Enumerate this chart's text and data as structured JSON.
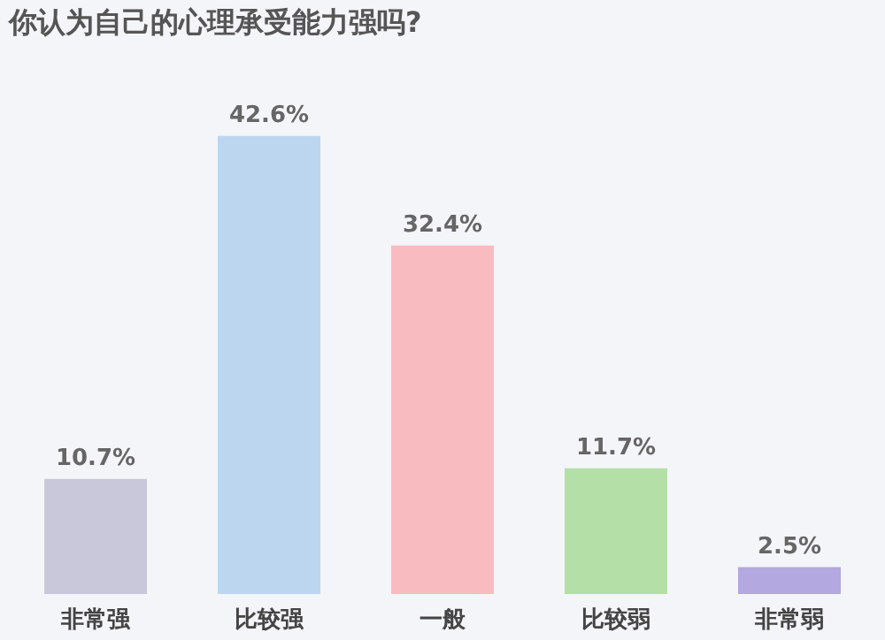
{
  "chart_data": {
    "type": "bar",
    "title": "你认为自己的心理承受能力强吗?",
    "categories": [
      "非常强",
      "比较强",
      "一般",
      "比较弱",
      "非常弱"
    ],
    "values": [
      10.7,
      42.6,
      32.4,
      11.7,
      2.5
    ],
    "colors": [
      "#c9c8da",
      "#bcd6ef",
      "#f8bcc0",
      "#b4e0a8",
      "#b3a8e0"
    ],
    "value_labels": [
      "10.7%",
      "42.6%",
      "32.4%",
      "11.7%",
      "2.5%"
    ],
    "grid": false
  }
}
